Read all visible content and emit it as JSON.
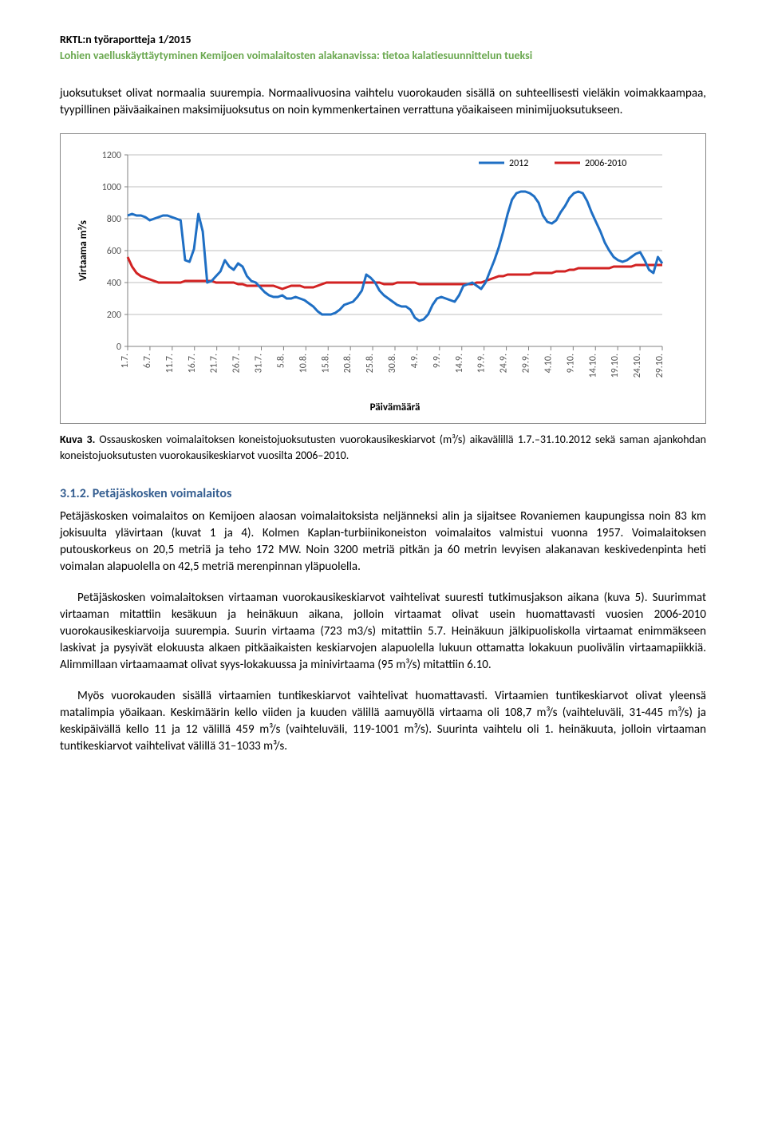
{
  "header": {
    "line1": "RKTL:n työraportteja 1/2015",
    "line2": "Lohien vaelluskäyttäytyminen Kemijoen voimalaitosten alakanavissa: tietoa kalatiesuunnittelun tueksi"
  },
  "intro_para": "juoksutukset olivat normaalia suurempia. Normaalivuosina vaihtelu vuorokauden sisällä on suhteellisesti vieläkin voimakkaampaa, tyypillinen päiväaikainen maksimijuoksutus on noin kymmenkertainen verrattuna yöaikaiseen minimijuoksutukseen.",
  "chart": {
    "type": "line",
    "series": [
      {
        "name": "2012",
        "color": "#1f6fc4",
        "width": 3
      },
      {
        "name": "2006-2010",
        "color": "#d22222",
        "width": 3
      }
    ],
    "legend_text_color": "#000000",
    "legend_box": {
      "border": "#888888"
    },
    "ylabel": "Virtaama m³/s",
    "xlabel": "Päivämäärä",
    "yticks": [
      0,
      200,
      400,
      600,
      800,
      1000,
      1200
    ],
    "ylim": [
      0,
      1200
    ],
    "xticks": [
      "1.7.",
      "6.7.",
      "11.7.",
      "16.7.",
      "21.7.",
      "26.7.",
      "31.7.",
      "5.8.",
      "10.8.",
      "15.8.",
      "20.8.",
      "25.8.",
      "30.8.",
      "4.9.",
      "9.9.",
      "14.9.",
      "19.9.",
      "24.9.",
      "29.9.",
      "4.10.",
      "9.10.",
      "14.10.",
      "19.10.",
      "24.10.",
      "29.10."
    ],
    "grid_color": "#bfbfbf",
    "axis_color": "#808080",
    "background_color": "#ffffff",
    "label_fontsize": 13,
    "tick_fontsize": 12,
    "data_2012": [
      820,
      830,
      820,
      820,
      810,
      790,
      800,
      810,
      820,
      820,
      810,
      800,
      790,
      540,
      530,
      610,
      830,
      720,
      400,
      410,
      440,
      470,
      540,
      500,
      480,
      520,
      500,
      440,
      410,
      400,
      370,
      340,
      320,
      310,
      310,
      320,
      300,
      300,
      310,
      300,
      290,
      270,
      250,
      220,
      200,
      200,
      200,
      210,
      230,
      260,
      270,
      280,
      310,
      350,
      450,
      430,
      400,
      350,
      320,
      300,
      280,
      260,
      250,
      250,
      230,
      180,
      160,
      170,
      200,
      260,
      300,
      310,
      300,
      290,
      280,
      320,
      380,
      390,
      400,
      380,
      360,
      400,
      470,
      540,
      620,
      720,
      830,
      920,
      960,
      970,
      970,
      960,
      940,
      900,
      820,
      780,
      770,
      790,
      840,
      880,
      930,
      960,
      970,
      960,
      910,
      840,
      780,
      720,
      650,
      600,
      560,
      540,
      530,
      540,
      560,
      580,
      590,
      540,
      480,
      460,
      560,
      520
    ],
    "data_2006_2010": [
      560,
      500,
      460,
      440,
      430,
      420,
      410,
      400,
      400,
      400,
      400,
      400,
      400,
      410,
      410,
      410,
      410,
      410,
      410,
      410,
      400,
      400,
      400,
      400,
      400,
      390,
      390,
      380,
      380,
      380,
      380,
      380,
      380,
      380,
      370,
      360,
      370,
      380,
      380,
      380,
      370,
      370,
      370,
      380,
      390,
      400,
      400,
      400,
      400,
      400,
      400,
      400,
      400,
      400,
      400,
      400,
      400,
      400,
      390,
      390,
      390,
      400,
      400,
      400,
      400,
      400,
      390,
      390,
      390,
      390,
      390,
      390,
      390,
      390,
      390,
      390,
      390,
      390,
      390,
      400,
      400,
      410,
      420,
      430,
      440,
      440,
      450,
      450,
      450,
      450,
      450,
      450,
      460,
      460,
      460,
      460,
      460,
      470,
      470,
      470,
      480,
      480,
      490,
      490,
      490,
      490,
      490,
      490,
      490,
      490,
      500,
      500,
      500,
      500,
      500,
      510,
      510,
      510,
      510,
      510,
      510,
      510
    ]
  },
  "caption": {
    "label": "Kuva 3.",
    "text": " Ossauskosken  voimalaitoksen  koneistojuoksutusten  vuorokausikeskiarvot  (m³/s)  aikavälillä 1.7.–31.10.2012 sekä saman ajankohdan koneistojuoksutusten vuorokausikeskiarvot vuosilta 2006–2010."
  },
  "section": {
    "number": "3.1.2.",
    "title": " Petäjäskosken voimalaitos"
  },
  "body_para1": "Petäjäskosken voimalaitos on Kemijoen alaosan voimalaitoksista neljänneksi alin ja sijaitsee Rovaniemen kaupungissa noin 83 km jokisuulta ylävirtaan (kuvat 1 ja 4). Kolmen Kaplan-turbiinikoneiston voimalaitos valmistui vuonna 1957. Voimalaitoksen putouskorkeus on 20,5 metriä ja teho 172 MW. Noin 3200 metriä pitkän ja 60 metrin levyisen alakanavan keskivedenpinta heti voimalan alapuolella on 42,5 metriä merenpinnan yläpuolella.",
  "body_para2": "Petäjäskosken voimalaitoksen virtaaman vuorokausikeskiarvot vaihtelivat suuresti tutkimusjakson aikana (kuva 5). Suurimmat virtaaman mitattiin kesäkuun ja heinäkuun aikana, jolloin virtaamat olivat usein huomattavasti vuosien 2006-2010 vuorokausikeskiarvoija suurempia. Suurin virtaama (723 m3/s) mitattiin 5.7. Heinäkuun jälkipuoliskolla virtaamat enimmäkseen laskivat ja pysyivät elokuusta alkaen pitkäaikaisten keskiarvojen alapuolella lukuun ottamatta lokakuun puolivälin virtaamapiikkiä. Alimmillaan virtaamaamat olivat syys-lokakuussa ja minivirtaama (95 m³/s) mitattiin 6.10.",
  "body_para3": "Myös vuorokauden sisällä virtaamien tuntikeskiarvot vaihtelivat huomattavasti. Virtaamien tuntikeskiarvot olivat yleensä matalimpia yöaikaan. Keskimäärin kello viiden ja kuuden välillä aamuyöllä virtaama oli 108,7 m³/s (vaihteluväli, 31-445 m³/s) ja keskipäivällä kello 11 ja 12 välillä 459 m³/s (vaihteluväli, 119-1001 m³/s). Suurinta vaihtelu oli 1. heinäkuuta, jolloin virtaaman tuntikeskiarvot vaihtelivat välillä 31–1033 m³/s."
}
